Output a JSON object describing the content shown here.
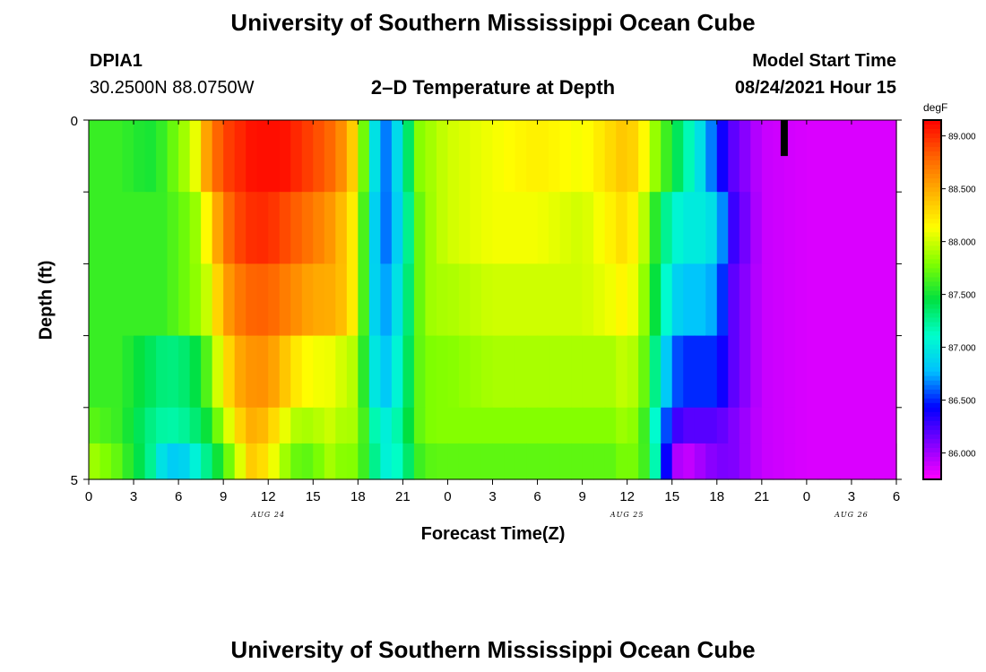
{
  "header": {
    "title": "University of Southern Mississippi Ocean Cube",
    "station": "DPIA1",
    "coords": "30.2500N  88.0750W",
    "subtitle": "2–D Temperature at Depth",
    "model_start_label": "Model Start Time",
    "model_start_value": "08/24/2021 Hour 15"
  },
  "footer": {
    "title": "University of Southern Mississippi Ocean Cube"
  },
  "colors": {
    "high": "#ff0000",
    "mid": "#ffff00",
    "low": "#ff00ff",
    "colorbar_scale": [
      "#ff00ff",
      "#8000ff",
      "#0000ff",
      "#00c0ff",
      "#00ffcc",
      "#00e040",
      "#80ff00",
      "#ffff00",
      "#ffb000",
      "#ff6000",
      "#ff0000"
    ]
  },
  "chart_data": {
    "type": "heatmap",
    "title": "2–D Temperature at Depth",
    "xlabel": "Forecast Time(Z)",
    "ylabel": "Depth (ft)",
    "units": "degF",
    "value_range": [
      85.75,
      89.15
    ],
    "x_ticks": [
      "0",
      "3",
      "6",
      "9",
      "12",
      "15",
      "18",
      "21",
      "0",
      "3",
      "6",
      "9",
      "12",
      "15",
      "18",
      "21",
      "0",
      "3",
      "6"
    ],
    "x_range_hours": [
      0,
      54
    ],
    "date_labels": [
      {
        "hour": 12,
        "text": "AUG 24"
      },
      {
        "hour": 36,
        "text": "AUG 25"
      },
      {
        "hour": 51,
        "text": "AUG 26"
      }
    ],
    "y_ticks": [
      "0",
      "5"
    ],
    "y_range": [
      0,
      5
    ],
    "depth_levels": [
      0,
      1,
      2,
      3,
      4,
      5
    ],
    "colorbar_ticks": [
      "89.000",
      "88.500",
      "88.000",
      "87.500",
      "87.000",
      "86.500",
      "86.000"
    ],
    "colorbar_values": [
      89.0,
      88.5,
      88.0,
      87.5,
      87.0,
      86.5,
      86.0
    ],
    "anchors_hours": [
      0,
      2,
      4,
      5,
      6,
      7,
      8,
      9,
      10,
      11,
      12,
      13,
      14,
      15,
      16,
      17,
      18,
      19,
      20,
      21,
      22,
      23,
      24,
      27,
      30,
      33,
      35,
      36,
      37,
      38,
      39,
      40,
      41,
      42,
      43,
      45,
      48,
      51,
      54
    ],
    "temperature_layers": [
      [
        87.6,
        87.6,
        87.5,
        87.6,
        87.8,
        88.0,
        88.6,
        88.9,
        89.0,
        89.1,
        89.1,
        89.1,
        89.0,
        88.9,
        88.8,
        88.6,
        88.2,
        87.0,
        86.6,
        87.1,
        87.8,
        87.9,
        88.0,
        88.1,
        88.2,
        88.1,
        88.3,
        88.4,
        88.2,
        87.8,
        87.5,
        87.2,
        86.9,
        86.5,
        86.2,
        85.9,
        85.85,
        85.85,
        85.85
      ],
      [
        87.6,
        87.6,
        87.6,
        87.6,
        87.7,
        87.8,
        88.2,
        88.7,
        88.9,
        89.0,
        89.0,
        88.9,
        88.8,
        88.7,
        88.6,
        88.4,
        88.1,
        86.9,
        86.6,
        87.0,
        87.7,
        87.9,
        88.0,
        88.1,
        88.1,
        88.0,
        88.2,
        88.3,
        88.0,
        87.5,
        87.1,
        87.0,
        87.0,
        86.9,
        86.3,
        85.9,
        85.85,
        85.85,
        85.85
      ],
      [
        87.6,
        87.6,
        87.6,
        87.6,
        87.7,
        87.8,
        88.0,
        88.5,
        88.7,
        88.8,
        88.8,
        88.7,
        88.6,
        88.5,
        88.5,
        88.4,
        88.1,
        86.9,
        86.7,
        87.1,
        87.7,
        87.9,
        87.9,
        88.0,
        88.0,
        88.0,
        88.1,
        88.2,
        87.9,
        87.4,
        86.9,
        86.8,
        86.8,
        86.7,
        86.2,
        85.9,
        85.85,
        85.85,
        85.85
      ],
      [
        87.6,
        87.6,
        87.4,
        87.3,
        87.3,
        87.4,
        87.7,
        88.2,
        88.5,
        88.6,
        88.6,
        88.4,
        88.2,
        88.1,
        88.1,
        88.0,
        87.9,
        87.0,
        86.8,
        87.2,
        87.7,
        87.8,
        87.8,
        87.9,
        87.9,
        87.9,
        87.9,
        88.0,
        87.8,
        87.2,
        86.6,
        86.5,
        86.5,
        86.5,
        86.2,
        85.9,
        85.85,
        85.85,
        85.85
      ],
      [
        87.7,
        87.6,
        87.3,
        87.2,
        87.2,
        87.3,
        87.5,
        87.9,
        88.3,
        88.5,
        88.4,
        88.1,
        87.9,
        87.9,
        88.0,
        87.9,
        87.9,
        87.2,
        87.0,
        87.3,
        87.7,
        87.8,
        87.8,
        87.8,
        87.8,
        87.8,
        87.8,
        87.9,
        87.7,
        87.0,
        86.3,
        86.2,
        86.2,
        86.2,
        86.1,
        85.9,
        85.85,
        85.85,
        85.85
      ],
      [
        87.9,
        87.7,
        87.3,
        86.9,
        86.8,
        87.0,
        87.3,
        87.6,
        88.0,
        88.4,
        88.2,
        87.9,
        87.7,
        87.7,
        87.9,
        87.8,
        87.8,
        87.3,
        87.0,
        87.2,
        87.6,
        87.7,
        87.7,
        87.7,
        87.7,
        87.7,
        87.7,
        87.8,
        87.7,
        87.1,
        86.0,
        85.9,
        86.0,
        86.1,
        86.1,
        85.9,
        85.85,
        85.85,
        85.85
      ]
    ],
    "marker": {
      "hour": 46.5,
      "depth_top": 0,
      "depth_bottom": 0.5
    }
  }
}
